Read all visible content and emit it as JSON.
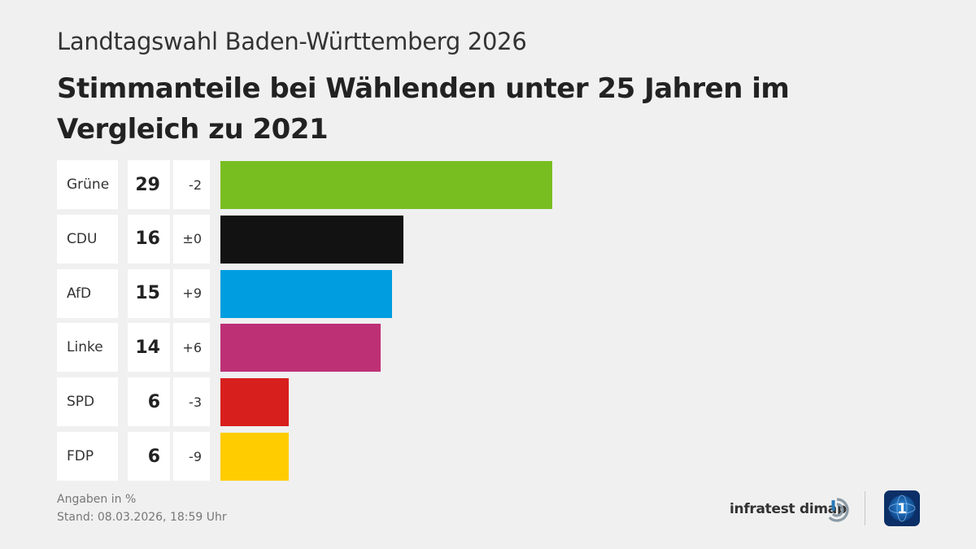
{
  "header": {
    "supertitle": "Landtagswahl Baden-Württemberg 2026",
    "title": "Stimmanteile bei Wählenden unter 25 Jahren im Vergleich zu 2021"
  },
  "chart_data": {
    "type": "bar",
    "orientation": "horizontal",
    "title": "Stimmanteile bei Wählenden unter 25 Jahren im Vergleich zu 2021",
    "categories": [
      "Grüne",
      "CDU",
      "AfD",
      "Linke",
      "SPD",
      "FDP"
    ],
    "values": [
      29,
      16,
      15,
      14,
      6,
      6
    ],
    "changes": [
      "-2",
      "±0",
      "+9",
      "+6",
      "-3",
      "-9"
    ],
    "colors": [
      "#78be20",
      "#121212",
      "#009ee0",
      "#be3075",
      "#d71f1d",
      "#ffcc00"
    ],
    "xlim": [
      0,
      61
    ],
    "grid": false
  },
  "footer": {
    "unit_note": "Angaben in %",
    "stand": "Stand:  08.03.2026, 18:59 Uhr"
  },
  "brand": {
    "pollster": "infratest dimap",
    "pollster_icon": "infratest-dimap-logo-icon",
    "broadcaster_icon": "ard-tagesschau-logo-icon"
  }
}
